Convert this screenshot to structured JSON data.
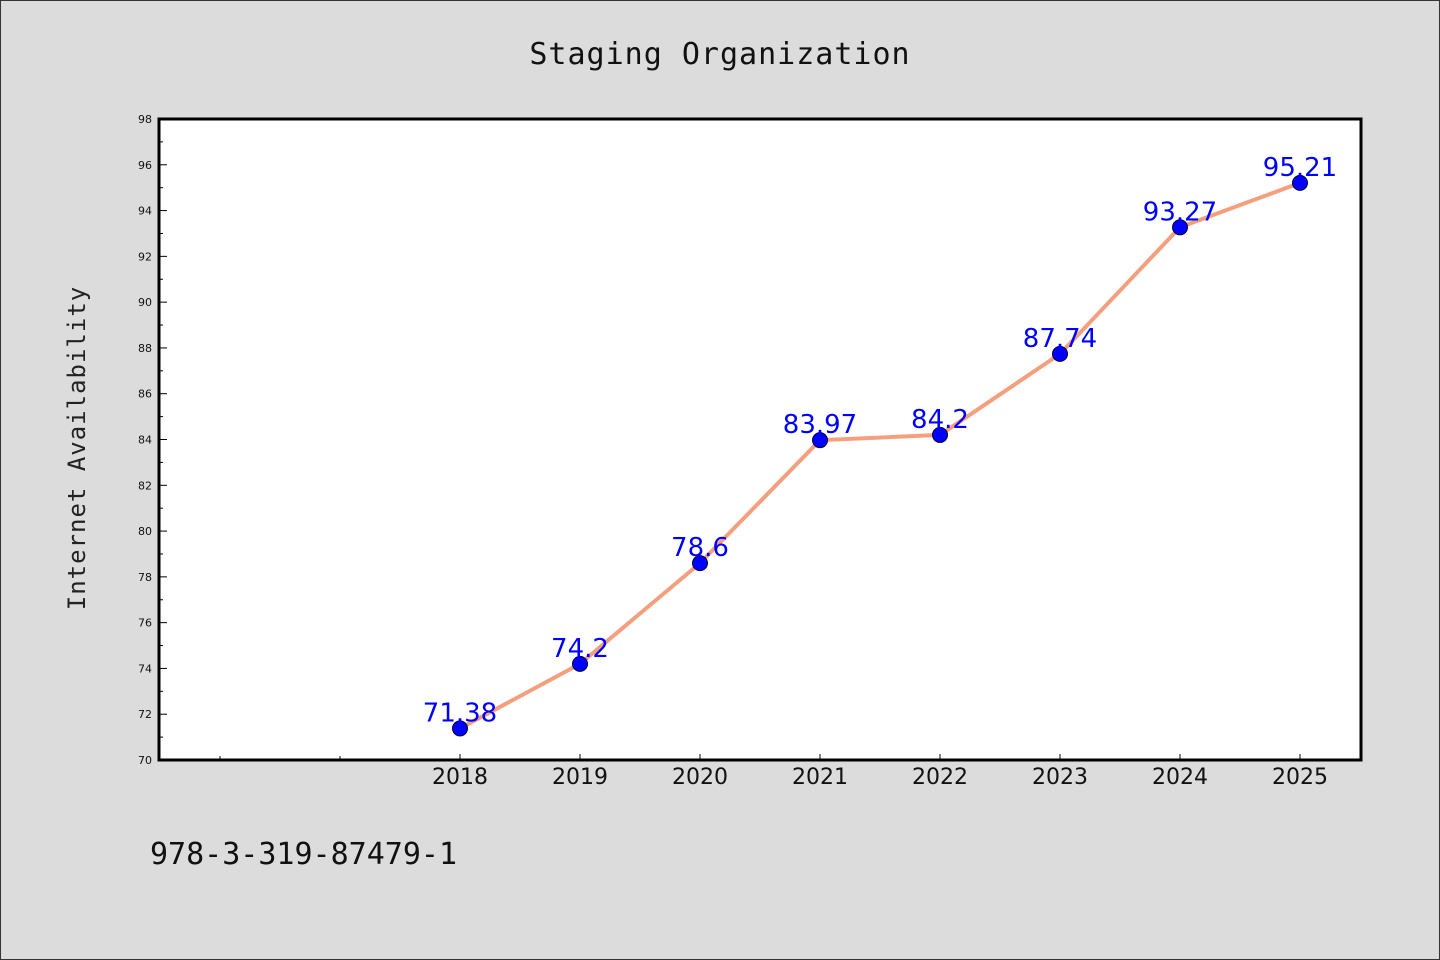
{
  "chart_data": {
    "type": "line",
    "title": "Staging Organization",
    "xlabel": "",
    "ylabel": "Internet Availability",
    "categories": [
      "2018",
      "2019",
      "2020",
      "2021",
      "2022",
      "2023",
      "2024",
      "2025"
    ],
    "series": [
      {
        "values": [
          71.38,
          74.2,
          78.6,
          83.97,
          84.2,
          87.74,
          93.27,
          95.21
        ],
        "data_labels": [
          "71.38",
          "74.2",
          "78.6",
          "83.97",
          "84.2",
          "87.74",
          "93.27",
          "95.21"
        ],
        "line_color": "#f4a07e",
        "marker_color": "#0000ff"
      }
    ],
    "ylim": [
      70,
      98
    ],
    "y_ticks": [
      "70",
      "72",
      "74",
      "76",
      "78",
      "80",
      "82",
      "84",
      "86",
      "88",
      "90",
      "92",
      "94",
      "96",
      "98"
    ],
    "grid": false,
    "legend": "none",
    "plot_background": "#ffffff",
    "figure_background": "#dcdcdc",
    "label_color": "#0000ff"
  },
  "footer_text": "978-3-319-87479-1"
}
